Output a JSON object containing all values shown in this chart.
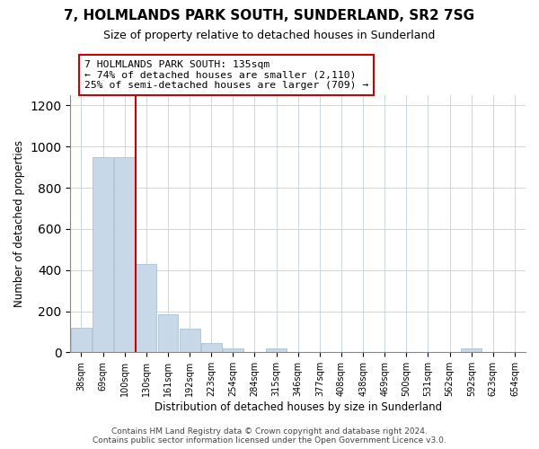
{
  "title": "7, HOLMLANDS PARK SOUTH, SUNDERLAND, SR2 7SG",
  "subtitle": "Size of property relative to detached houses in Sunderland",
  "xlabel": "Distribution of detached houses by size in Sunderland",
  "ylabel": "Number of detached properties",
  "bar_labels": [
    "38sqm",
    "69sqm",
    "100sqm",
    "130sqm",
    "161sqm",
    "192sqm",
    "223sqm",
    "254sqm",
    "284sqm",
    "315sqm",
    "346sqm",
    "377sqm",
    "408sqm",
    "438sqm",
    "469sqm",
    "500sqm",
    "531sqm",
    "562sqm",
    "592sqm",
    "623sqm",
    "654sqm"
  ],
  "bar_values": [
    120,
    950,
    950,
    430,
    185,
    113,
    47,
    18,
    0,
    18,
    0,
    0,
    0,
    0,
    0,
    0,
    0,
    0,
    18,
    0,
    0
  ],
  "bar_color": "#c8d8e8",
  "bar_edge_color": "#a0b8cc",
  "vline_x_idx": 2.5,
  "vline_color": "#cc0000",
  "annotation_title": "7 HOLMLANDS PARK SOUTH: 135sqm",
  "annotation_line1": "← 74% of detached houses are smaller (2,110)",
  "annotation_line2": "25% of semi-detached houses are larger (709) →",
  "annotation_box_color": "#cc0000",
  "ylim": [
    0,
    1250
  ],
  "yticks": [
    0,
    200,
    400,
    600,
    800,
    1000,
    1200
  ],
  "footer1": "Contains HM Land Registry data © Crown copyright and database right 2024.",
  "footer2": "Contains public sector information licensed under the Open Government Licence v3.0."
}
